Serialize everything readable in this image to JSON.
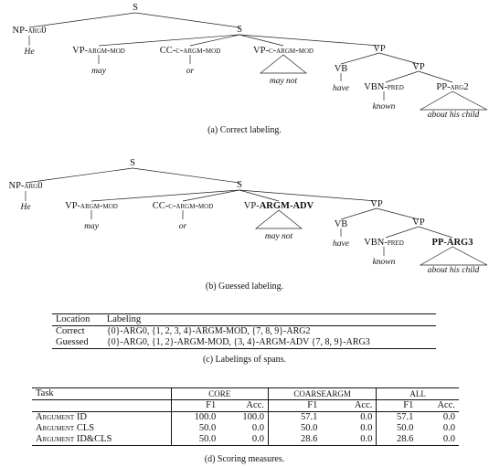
{
  "tree_a": {
    "S": "S",
    "S2": "S",
    "np": "NP-",
    "np_sc": "arg0",
    "he": "He",
    "vp1": "VP-",
    "vp1_sc": "argm-mod",
    "may": "may",
    "cc": "CC-",
    "cc_sc": "c-argm-mod",
    "or": "or",
    "vp2": "VP-",
    "vp2_sc": "c-argm-mod",
    "maynot": "may not",
    "vp3": "VP",
    "vb": "VB",
    "have": "have",
    "vp4": "VP",
    "vbn": "VBN-",
    "vbn_sc": "pred",
    "known": "known",
    "pp": "PP-",
    "pp_sc": "arg2",
    "about": "about his child"
  },
  "caption_a": "(a)  Correct labeling.",
  "tree_b": {
    "S": "S",
    "S2": "S",
    "np": "NP-",
    "np_sc": "arg0",
    "he": "He",
    "vp1": "VP-",
    "vp1_sc": "argm-mod",
    "may": "may",
    "cc": "CC-",
    "cc_sc": "c-argm-mod",
    "or": "or",
    "vp2": "VP-",
    "vp2_b": "ARGM-ADV",
    "maynot": "may not",
    "vp3": "VP",
    "vb": "VB",
    "have": "have",
    "vp4": "VP",
    "vbn": "VBN-",
    "vbn_sc": "pred",
    "known": "known",
    "pp": "PP-",
    "pp_b": "ARG3",
    "about": "about his child"
  },
  "caption_b": "(b)  Guessed labeling.",
  "spans_table": {
    "header": [
      "Location",
      "Labeling"
    ],
    "rows": [
      [
        "Correct",
        "{0}-ARG0, {1, 2, 3, 4}-ARGM-MOD, {7, 8, 9}-ARG2"
      ],
      [
        "Guessed",
        "{0}-ARG0, {1, 2}-ARGM-MOD, {3, 4}-ARGM-ADV {7, 8, 9}-ARG3"
      ]
    ]
  },
  "caption_c": "(c)  Labelings of spans.",
  "score_table": {
    "task": "Task",
    "groups": [
      "CORE",
      "COARSEARGM",
      "ALL"
    ],
    "sub": [
      "F1",
      "Acc."
    ],
    "rows": [
      {
        "task": "Argument ID",
        "v": [
          "100.0",
          "100.0",
          "57.1",
          "0.0",
          "57.1",
          "0.0"
        ]
      },
      {
        "task": "Argument CLS",
        "v": [
          "50.0",
          "0.0",
          "50.0",
          "0.0",
          "50.0",
          "0.0"
        ]
      },
      {
        "task": "Argument ID&CLS",
        "v": [
          "50.0",
          "0.0",
          "28.6",
          "0.0",
          "28.6",
          "0.0"
        ]
      }
    ]
  },
  "caption_d": "(d)  Scoring measures."
}
